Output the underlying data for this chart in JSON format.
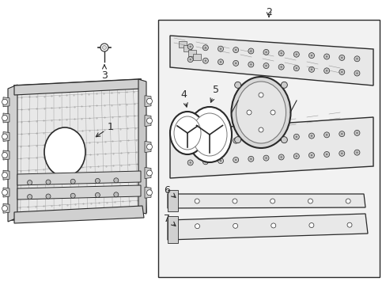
{
  "background_color": "#ffffff",
  "line_color": "#2a2a2a",
  "mid_gray": "#777777",
  "light_gray": "#aaaaaa",
  "fill_gray": "#e8e8e8",
  "fill_light": "#f2f2f2",
  "label_fontsize": 9,
  "fig_w": 4.89,
  "fig_h": 3.6,
  "dpi": 100
}
